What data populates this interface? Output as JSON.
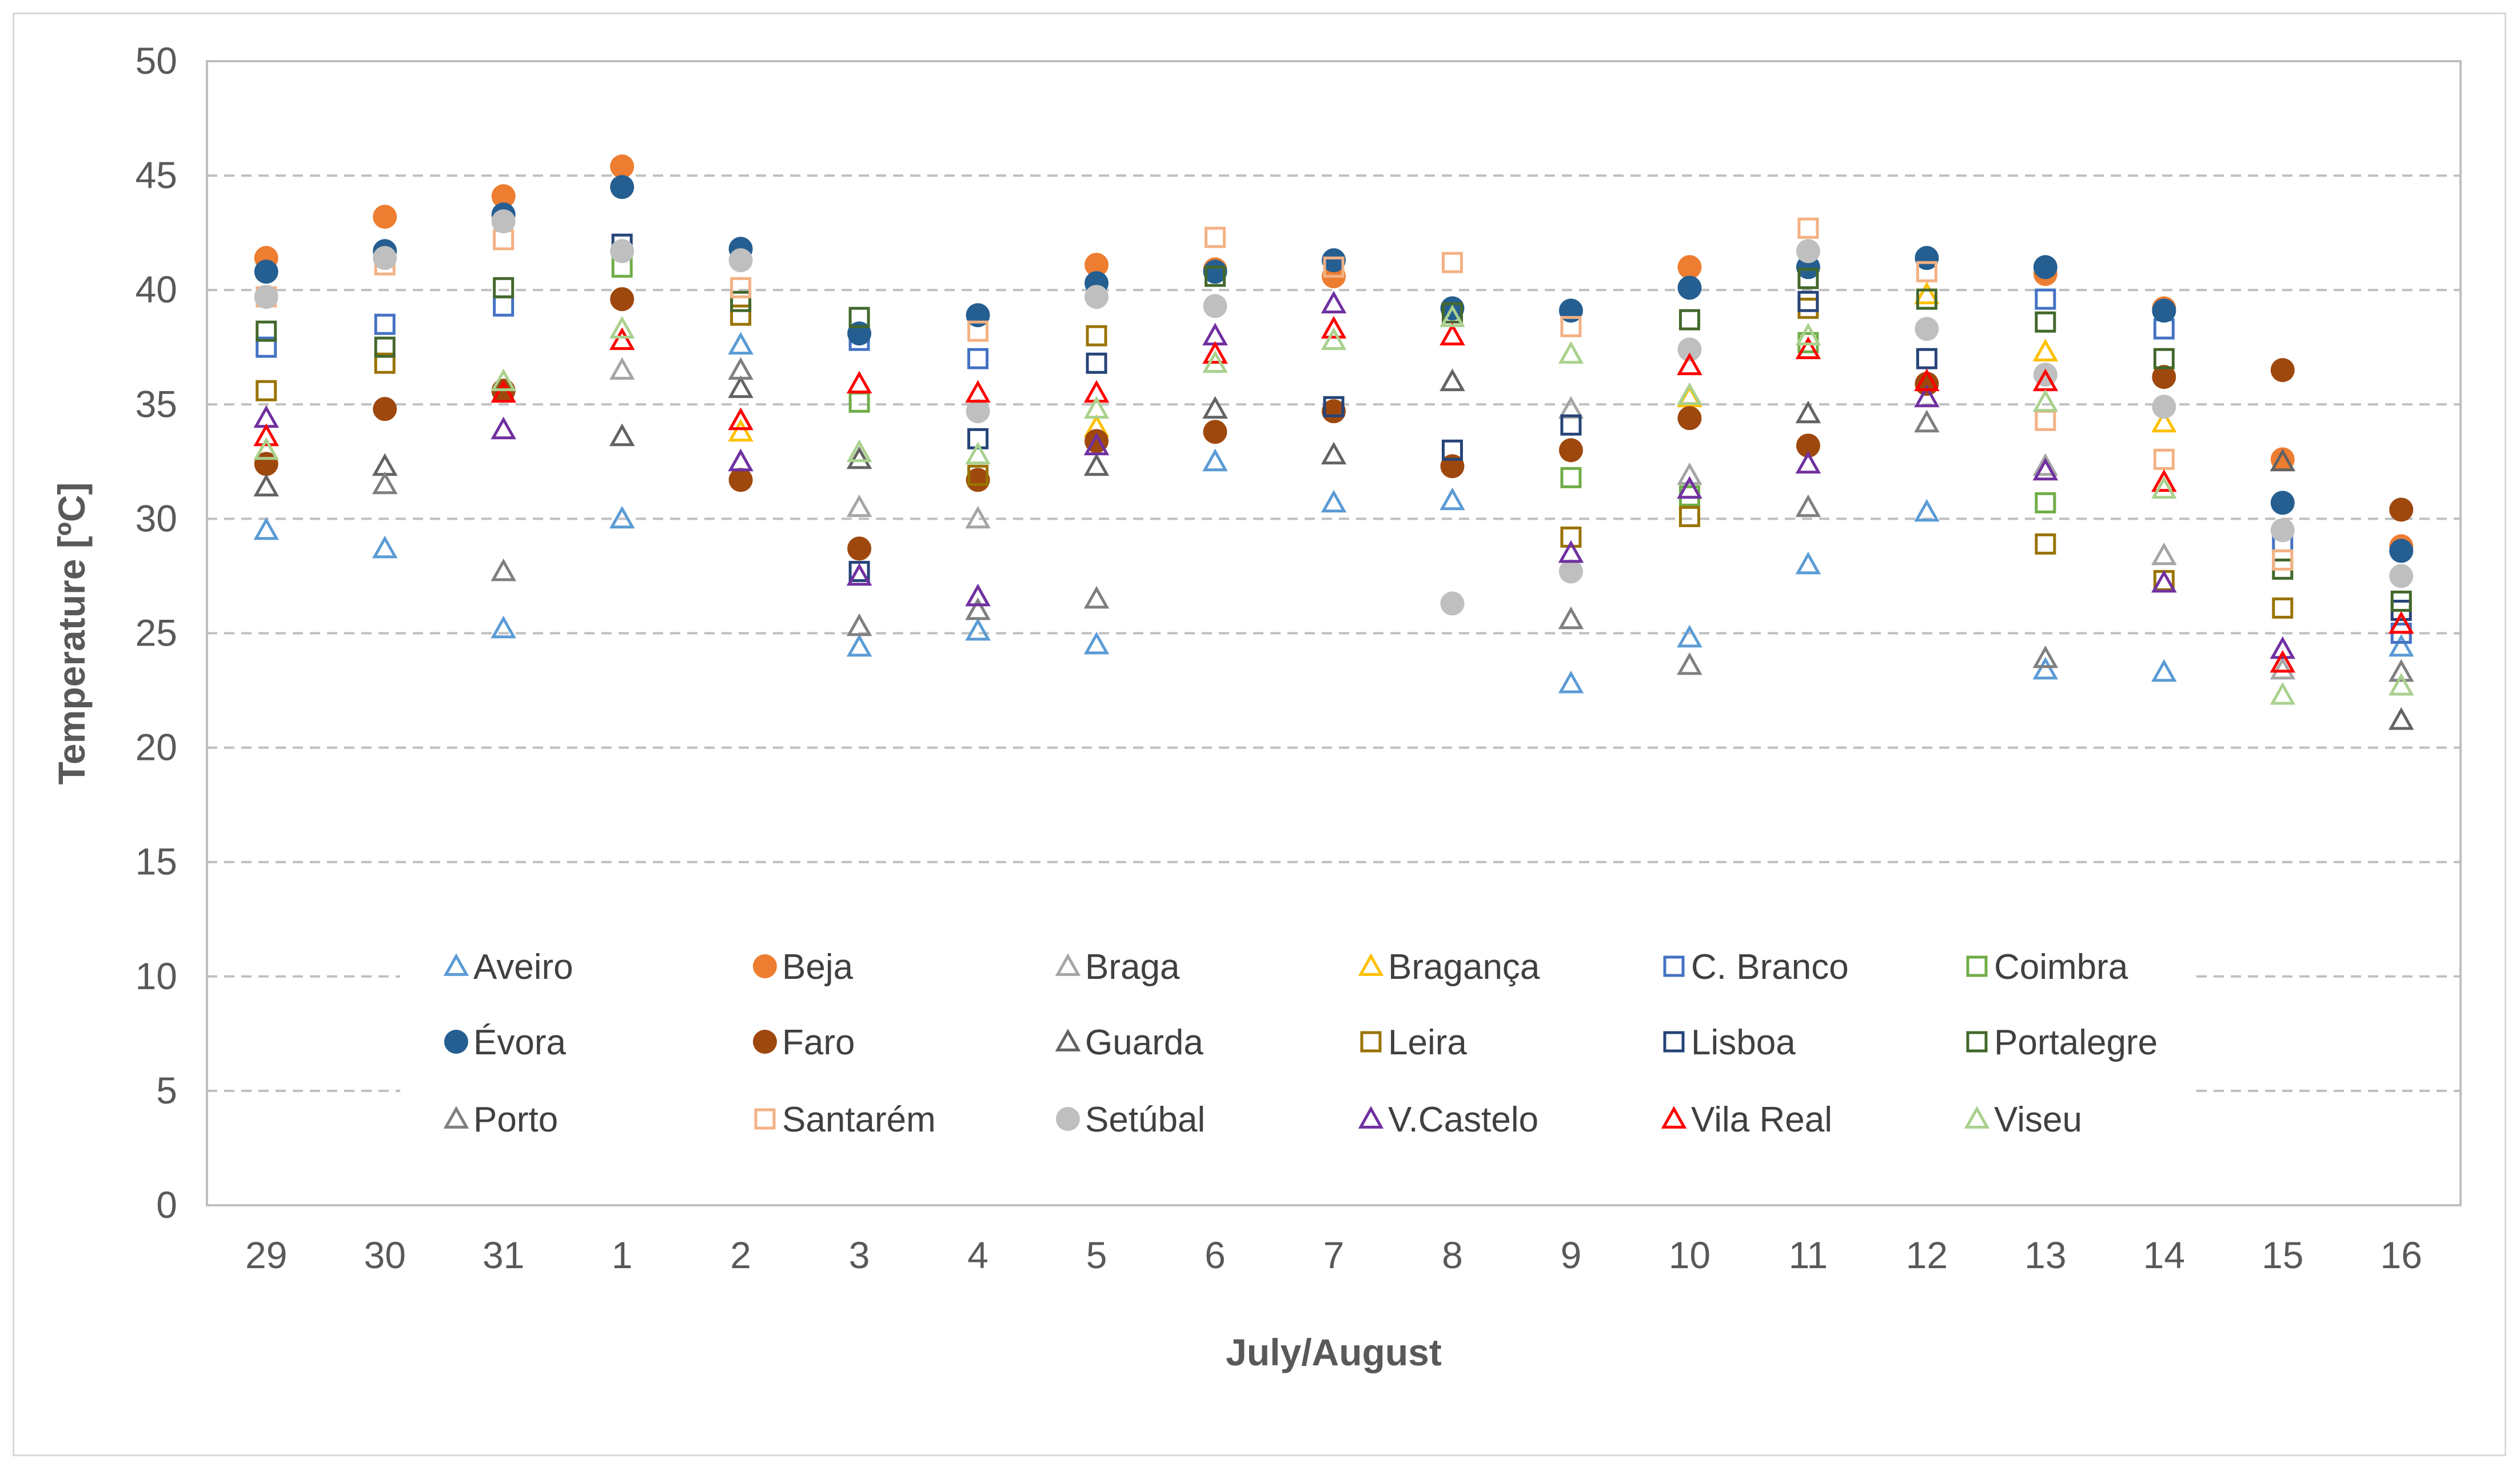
{
  "chart_data": {
    "type": "scatter",
    "title": "",
    "xlabel": "July/August",
    "ylabel": "Temperature [ºC]",
    "ylim": [
      0,
      50
    ],
    "yticks": [
      0,
      5,
      10,
      15,
      20,
      25,
      30,
      35,
      40,
      45,
      50
    ],
    "grid": "horizontal-dashed",
    "legend_position": "inside-bottom",
    "categories": [
      "29",
      "30",
      "31",
      "1",
      "2",
      "3",
      "4",
      "5",
      "6",
      "7",
      "8",
      "9",
      "10",
      "11",
      "12",
      "13",
      "14",
      "15",
      "16"
    ],
    "series": [
      {
        "name": "Aveiro",
        "marker": "triangle-open",
        "color": "#5b9bd5",
        "values": [
          29.5,
          28.7,
          25.2,
          30,
          37.6,
          24.4,
          25.1,
          24.5,
          32.5,
          30.7,
          30.8,
          22.8,
          24.8,
          28,
          30.3,
          23.4,
          23.3,
          null,
          24.4
        ]
      },
      {
        "name": "Beja",
        "marker": "circle-filled",
        "color": "#ed7d31",
        "values": [
          41.4,
          43.2,
          44.1,
          45.4,
          null,
          null,
          null,
          41.1,
          40.9,
          40.6,
          null,
          null,
          41,
          null,
          null,
          40.7,
          39.2,
          32.6,
          28.8
        ]
      },
      {
        "name": "Braga",
        "marker": "triangle-open",
        "color": "#a5a5a5",
        "values": [
          null,
          null,
          null,
          36.5,
          null,
          30.5,
          30,
          null,
          null,
          null,
          null,
          34.8,
          31.9,
          null,
          null,
          32.3,
          28.4,
          23.4,
          null
        ]
      },
      {
        "name": "Bragança",
        "marker": "triangle-open",
        "color": "#ffc000",
        "values": [
          33,
          null,
          null,
          null,
          33.8,
          null,
          null,
          34,
          null,
          null,
          null,
          null,
          35.3,
          null,
          39.8,
          37.3,
          34.2,
          null,
          null
        ]
      },
      {
        "name": "C. Branco",
        "marker": "square-open",
        "color": "#4472c4",
        "values": [
          37.5,
          38.5,
          39.3,
          null,
          null,
          37.8,
          37,
          null,
          null,
          null,
          null,
          null,
          null,
          null,
          null,
          39.6,
          38.3,
          29,
          25
        ]
      },
      {
        "name": "Coimbra",
        "marker": "square-open",
        "color": "#70ad47",
        "values": [
          null,
          null,
          null,
          41,
          null,
          35.1,
          null,
          null,
          null,
          null,
          null,
          31.8,
          31,
          37.7,
          null,
          30.7,
          null,
          null,
          null
        ]
      },
      {
        "name": "Évora",
        "marker": "circle-filled",
        "color": "#255e91",
        "values": [
          40.8,
          41.7,
          43.3,
          44.5,
          41.8,
          38.1,
          38.9,
          40.3,
          40.8,
          41.3,
          39.2,
          39.1,
          40.1,
          41,
          41.4,
          41,
          39.1,
          30.7,
          28.6
        ]
      },
      {
        "name": "Faro",
        "marker": "circle-filled",
        "color": "#9e480e",
        "values": [
          32.4,
          34.8,
          35.6,
          39.6,
          31.7,
          28.7,
          31.7,
          33.4,
          33.8,
          34.7,
          32.3,
          33,
          34.4,
          33.2,
          35.9,
          null,
          36.2,
          36.5,
          30.4
        ]
      },
      {
        "name": "Guarda",
        "marker": "triangle-open",
        "color": "#636363",
        "values": [
          31.4,
          32.3,
          null,
          33.6,
          35.7,
          32.6,
          null,
          32.3,
          34.8,
          32.8,
          36,
          null,
          null,
          34.6,
          null,
          null,
          null,
          32.5,
          21.2
        ]
      },
      {
        "name": "Leira",
        "marker": "square-open",
        "color": "#997300",
        "values": [
          35.6,
          36.8,
          null,
          null,
          38.9,
          null,
          31.9,
          38,
          null,
          null,
          null,
          29.2,
          30.1,
          39.2,
          null,
          28.9,
          27.3,
          26.1,
          null
        ]
      },
      {
        "name": "Lisboa",
        "marker": "square-open",
        "color": "#264478",
        "values": [
          null,
          null,
          null,
          42,
          null,
          27.7,
          33.5,
          36.8,
          null,
          34.9,
          33,
          34.1,
          null,
          39.5,
          37,
          null,
          null,
          null,
          26
        ]
      },
      {
        "name": "Portalegre",
        "marker": "square-open",
        "color": "#43682b",
        "values": [
          38.2,
          37.5,
          40.1,
          null,
          39.5,
          38.8,
          null,
          null,
          40.6,
          null,
          39,
          null,
          38.7,
          40.5,
          39.6,
          38.6,
          37,
          27.8,
          26.4
        ]
      },
      {
        "name": "Porto",
        "marker": "triangle-open",
        "color": "#7f7f7f",
        "values": [
          null,
          31.5,
          27.7,
          null,
          36.5,
          25.3,
          26,
          26.5,
          null,
          null,
          null,
          25.6,
          23.6,
          30.5,
          34.2,
          23.9,
          null,
          null,
          23.3
        ]
      },
      {
        "name": "Santarém",
        "marker": "square-open",
        "color": "#f4b183",
        "values": [
          39.7,
          41.1,
          42.2,
          null,
          40.1,
          null,
          38.2,
          null,
          42.3,
          41,
          41.2,
          38.4,
          null,
          42.7,
          40.8,
          34.3,
          32.6,
          28.2,
          null
        ]
      },
      {
        "name": "Setúbal",
        "marker": "circle-filled",
        "color": "#bfbfbf",
        "values": [
          39.7,
          41.4,
          43,
          41.7,
          41.3,
          null,
          34.7,
          39.7,
          39.3,
          null,
          26.3,
          27.7,
          37.4,
          41.7,
          38.3,
          36.3,
          34.9,
          29.5,
          27.5
        ]
      },
      {
        "name": "V.Castelo",
        "marker": "triangle-open",
        "color": "#7030a0",
        "values": [
          34.4,
          null,
          33.9,
          null,
          32.5,
          27.5,
          26.6,
          33.2,
          38,
          39.4,
          null,
          28.5,
          31.3,
          32.4,
          35.3,
          32.1,
          27.2,
          24.3,
          null
        ]
      },
      {
        "name": "Vila Real",
        "marker": "triangle-open",
        "color": "#ff0000",
        "values": [
          33.6,
          null,
          35.5,
          37.8,
          34.3,
          35.9,
          35.5,
          35.5,
          37.2,
          38.3,
          38,
          null,
          36.7,
          37.4,
          36,
          36,
          31.6,
          23.7,
          25.4
        ]
      },
      {
        "name": "Viseu",
        "marker": "triangle-open",
        "color": "#a9d18e",
        "values": [
          33,
          null,
          36,
          38.3,
          null,
          32.9,
          32.8,
          34.8,
          36.8,
          37.8,
          38.8,
          37.2,
          35.4,
          38,
          null,
          35.1,
          31.3,
          22.3,
          22.7
        ]
      }
    ]
  }
}
